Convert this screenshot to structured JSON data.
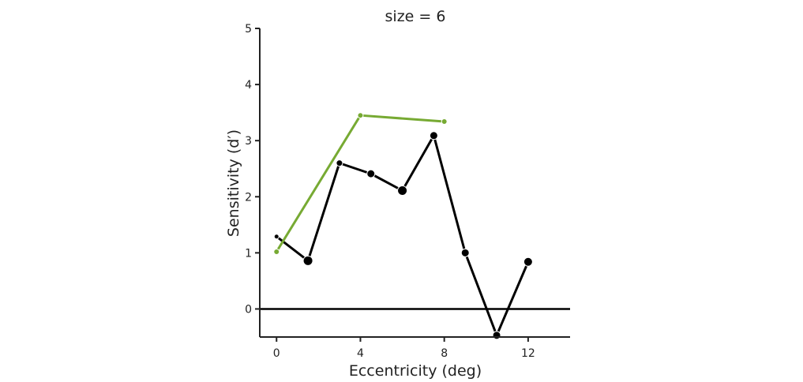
{
  "chart_data": {
    "type": "line",
    "title": "size = 6",
    "xlabel": "Eccentricity (deg)",
    "ylabel": "Sensitivity (d′)",
    "xlim": [
      -0.8,
      14
    ],
    "ylim": [
      -0.5,
      5
    ],
    "x_ticks": [
      0,
      4,
      8,
      12
    ],
    "y_ticks": [
      0,
      1,
      2,
      3,
      4,
      5
    ],
    "reference_line_y": 0,
    "grid": false,
    "series": [
      {
        "color": "#000000",
        "points": [
          {
            "x": 0,
            "y": 1.29,
            "size": 3
          },
          {
            "x": 1.5,
            "y": 0.86,
            "size": 6
          },
          {
            "x": 3.0,
            "y": 2.6,
            "size": 4
          },
          {
            "x": 4.5,
            "y": 2.41,
            "size": 5
          },
          {
            "x": 6.0,
            "y": 2.11,
            "size": 6
          },
          {
            "x": 7.5,
            "y": 3.09,
            "size": 5
          },
          {
            "x": 9.0,
            "y": 1.0,
            "size": 5
          },
          {
            "x": 10.5,
            "y": -0.47,
            "size": 5
          },
          {
            "x": 12.0,
            "y": 0.84,
            "size": 5.5
          }
        ]
      },
      {
        "color": "#77aa33",
        "points": [
          {
            "x": 0,
            "y": 1.02,
            "size": 3.5
          },
          {
            "x": 4,
            "y": 3.45,
            "size": 3.5
          },
          {
            "x": 8,
            "y": 3.34,
            "size": 3.5
          }
        ]
      }
    ]
  }
}
